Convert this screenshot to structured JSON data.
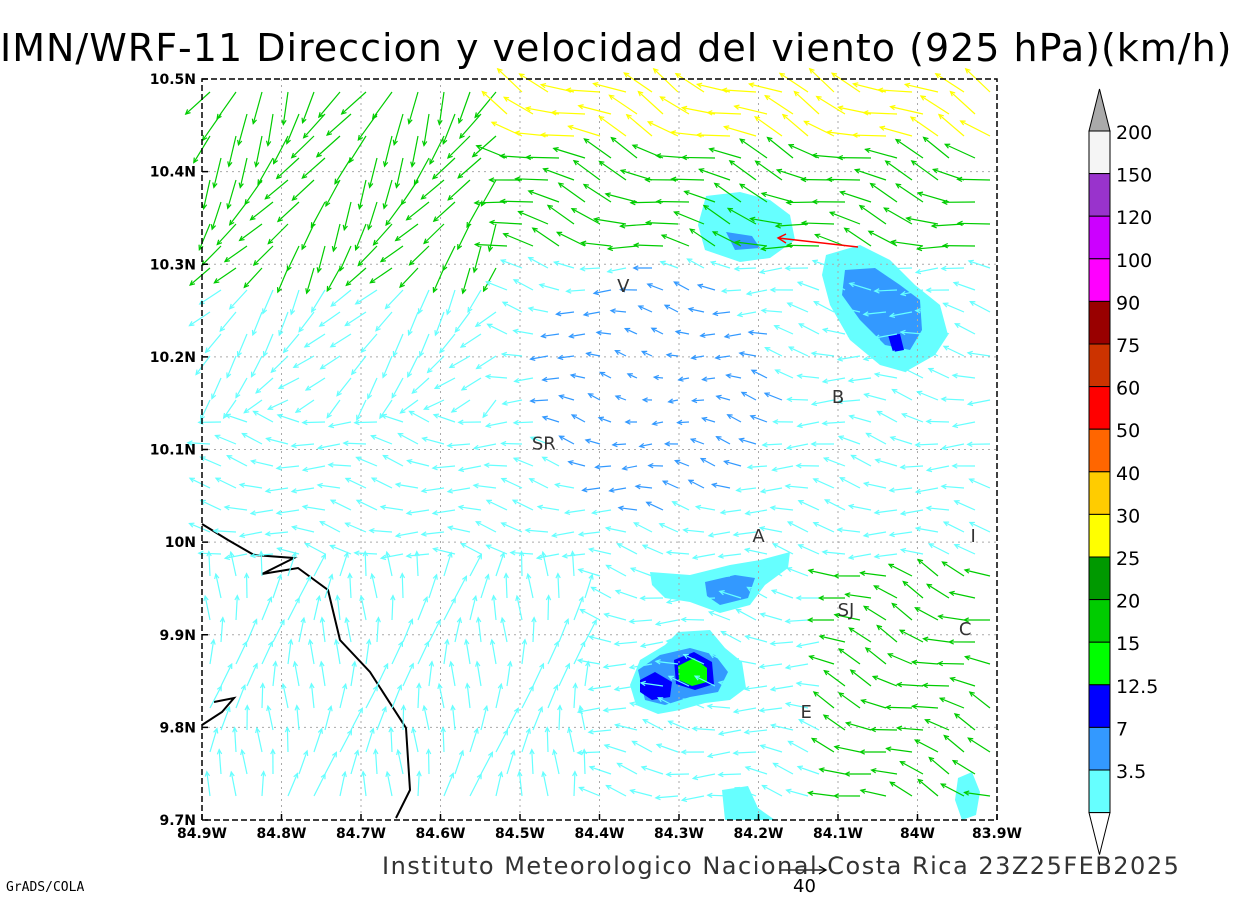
{
  "title": "IMN/WRF-11 Direccion y velocidad del viento (925 hPa)(km/h)",
  "footer": "Instituto Meteorologico Nacional Costa Rica 23Z25FEB2025",
  "credit": "GrADS/COLA",
  "reference_vector_label": "40",
  "map": {
    "lon_range": [
      -84.9,
      -83.9
    ],
    "lat_range": [
      9.7,
      10.5
    ],
    "x_ticks": [
      "84.9W",
      "84.8W",
      "84.7W",
      "84.6W",
      "84.5W",
      "84.4W",
      "84.3W",
      "84.2W",
      "84.1W",
      "84W",
      "83.9W"
    ],
    "y_ticks": [
      "9.7N",
      "9.8N",
      "9.9N",
      "10N",
      "10.1N",
      "10.2N",
      "10.3N",
      "10.4N",
      "10.5N"
    ],
    "grid": true,
    "cities": [
      {
        "label": "V",
        "lon": -84.37,
        "lat": 10.27
      },
      {
        "label": "B",
        "lon": -84.1,
        "lat": 10.15
      },
      {
        "label": "SR",
        "lon": -84.47,
        "lat": 10.1
      },
      {
        "label": "A",
        "lon": -84.2,
        "lat": 10.0
      },
      {
        "label": "I",
        "lon": -83.93,
        "lat": 10.0
      },
      {
        "label": "SJ",
        "lon": -84.09,
        "lat": 9.92
      },
      {
        "label": "C",
        "lon": -83.94,
        "lat": 9.9
      },
      {
        "label": "E",
        "lon": -84.14,
        "lat": 9.81
      }
    ]
  },
  "colorbar": {
    "labels": [
      "3.5",
      "7",
      "12.5",
      "15",
      "20",
      "25",
      "30",
      "40",
      "50",
      "60",
      "75",
      "90",
      "100",
      "120",
      "150",
      "200"
    ],
    "colors": {
      "lt3_5": "#ffffff",
      "c3_5": "#66ffff",
      "c7": "#3399ff",
      "c12_5": "#0000ff",
      "c15": "#00ff00",
      "c20": "#00cc00",
      "c25": "#009900",
      "c30": "#ffff00",
      "c40": "#ffcc00",
      "c50": "#ff6600",
      "c60": "#ff0000",
      "c75": "#cc3300",
      "c90": "#990000",
      "c100": "#ff00ff",
      "c120": "#cc00ff",
      "c150": "#9933cc",
      "c200": "#f5f5f5",
      "gt200": "#aaaaaa"
    }
  }
}
